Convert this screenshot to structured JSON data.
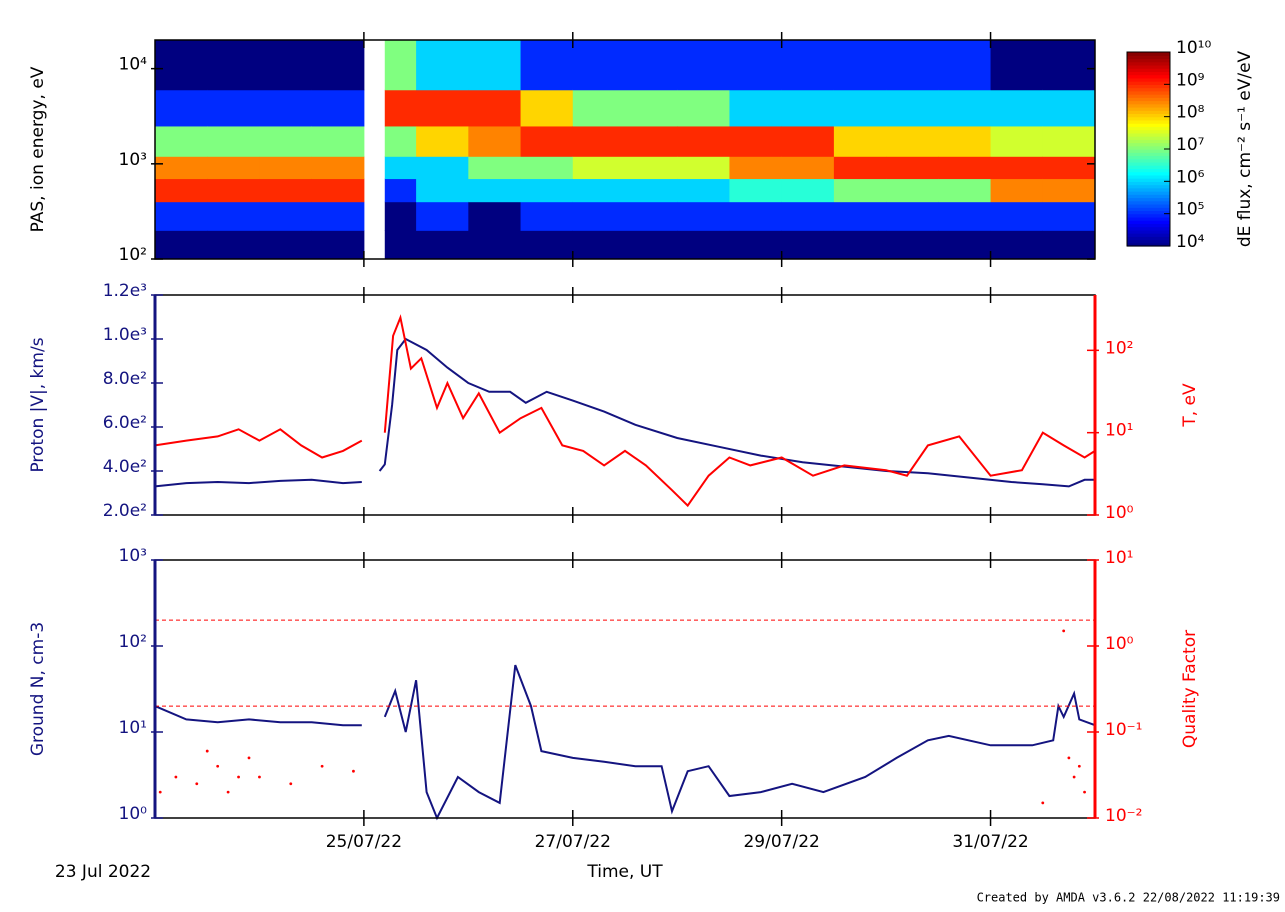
{
  "chart_data": [
    {
      "type": "heatmap",
      "ylabel": "PAS, ion energy, eV",
      "ylog": true,
      "xlim": [
        0,
        9
      ],
      "ylim": [
        100,
        20000
      ],
      "yticks": [
        {
          "value": 100,
          "label": "10²"
        },
        {
          "value": 1000,
          "label": "10³"
        },
        {
          "value": 10000,
          "label": "10⁴"
        }
      ],
      "x_edges": [
        0,
        0.5,
        1,
        1.5,
        2,
        2.2,
        2.5,
        3,
        3.5,
        4,
        4.5,
        5,
        5.5,
        6,
        6.5,
        7,
        7.5,
        8,
        8.5,
        9
      ],
      "y_edges": [
        100,
        200,
        400,
        700,
        1200,
        2500,
        6000,
        20000
      ],
      "z": [
        [
          10000.0,
          100000.0,
          1000000000.0,
          300000000.0,
          10000000.0,
          100000.0,
          10000.0
        ],
        [
          10000.0,
          100000.0,
          1000000000.0,
          300000000.0,
          10000000.0,
          100000.0,
          10000.0
        ],
        [
          10000.0,
          100000.0,
          1000000000.0,
          300000000.0,
          10000000.0,
          100000.0,
          10000.0
        ],
        [
          10000.0,
          100000.0,
          1000000000.0,
          300000000.0,
          10000000.0,
          100000.0,
          10000.0
        ],
        [
          null,
          null,
          null,
          null,
          null,
          null,
          null
        ],
        [
          10000.0,
          10000.0,
          100000.0,
          1000000.0,
          10000000.0,
          1000000000.0,
          10000000.0
        ],
        [
          10000.0,
          100000.0,
          1000000.0,
          1000000.0,
          100000000.0,
          1000000000.0,
          1000000.0
        ],
        [
          10000.0,
          10000.0,
          1000000.0,
          10000000.0,
          300000000.0,
          1000000000.0,
          1000000.0
        ],
        [
          10000.0,
          100000.0,
          1000000.0,
          10000000.0,
          1000000000.0,
          100000000.0,
          100000.0
        ],
        [
          10000.0,
          100000.0,
          1000000.0,
          30000000.0,
          1000000000.0,
          10000000.0,
          100000.0
        ],
        [
          10000.0,
          100000.0,
          1000000.0,
          30000000.0,
          1000000000.0,
          10000000.0,
          100000.0
        ],
        [
          10000.0,
          100000.0,
          1000000.0,
          30000000.0,
          1000000000.0,
          10000000.0,
          100000.0
        ],
        [
          10000.0,
          100000.0,
          3000000.0,
          300000000.0,
          1000000000.0,
          1000000.0,
          100000.0
        ],
        [
          10000.0,
          100000.0,
          3000000.0,
          300000000.0,
          1000000000.0,
          1000000.0,
          100000.0
        ],
        [
          10000.0,
          100000.0,
          10000000.0,
          1000000000.0,
          100000000.0,
          1000000.0,
          100000.0
        ],
        [
          10000.0,
          100000.0,
          10000000.0,
          1000000000.0,
          100000000.0,
          1000000.0,
          100000.0
        ],
        [
          10000.0,
          100000.0,
          10000000.0,
          1000000000.0,
          100000000.0,
          1000000.0,
          100000.0
        ],
        [
          10000.0,
          100000.0,
          300000000.0,
          1000000000.0,
          30000000.0,
          1000000.0,
          10000.0
        ],
        [
          10000.0,
          100000.0,
          300000000.0,
          1000000000.0,
          30000000.0,
          1000000.0,
          10000.0
        ]
      ],
      "colorbar": {
        "label": "dE flux, cm⁻² s⁻¹ eV/eV",
        "lim": [
          10000.0,
          10000000000.0
        ],
        "ticks": [
          {
            "value": 10000.0,
            "label": "10⁴"
          },
          {
            "value": 100000.0,
            "label": "10⁵"
          },
          {
            "value": 1000000.0,
            "label": "10⁶"
          },
          {
            "value": 10000000.0,
            "label": "10⁷"
          },
          {
            "value": 100000000.0,
            "label": "10⁸"
          },
          {
            "value": 1000000000.0,
            "label": "10⁹"
          },
          {
            "value": 10000000000.0,
            "label": "10¹⁰"
          }
        ]
      }
    },
    {
      "type": "line",
      "ylabel": "Proton |V|, km/s",
      "y2label": "T, eV",
      "xlim": [
        0,
        9
      ],
      "ylim": [
        200,
        1200
      ],
      "y2lim": [
        1,
        470
      ],
      "y2log": true,
      "yticks": [
        {
          "value": 200,
          "label": "2.0e²"
        },
        {
          "value": 400,
          "label": "4.0e²"
        },
        {
          "value": 600,
          "label": "6.0e²"
        },
        {
          "value": 800,
          "label": "8.0e²"
        },
        {
          "value": 1000,
          "label": "1.0e³"
        },
        {
          "value": 1200,
          "label": "1.2e³"
        }
      ],
      "y2ticks": [
        {
          "value": 1,
          "label": "10⁰"
        },
        {
          "value": 10,
          "label": "10¹"
        },
        {
          "value": 100,
          "label": "10²"
        }
      ],
      "ycolor": "#141480",
      "y2color": "#ff0000",
      "series": [
        {
          "color": "#141480",
          "x": [
            0,
            0.3,
            0.6,
            0.9,
            1.2,
            1.5,
            1.8,
            1.98,
            2.05,
            2.15,
            2.2,
            2.27,
            2.32,
            2.4,
            2.6,
            2.8,
            3.0,
            3.2,
            3.4,
            3.55,
            3.75,
            4.0,
            4.3,
            4.6,
            5.0,
            5.4,
            5.8,
            6.2,
            6.6,
            7.0,
            7.4,
            7.8,
            8.2,
            8.5,
            8.75,
            8.9,
            9.0
          ],
          "values": [
            330,
            345,
            350,
            345,
            355,
            360,
            345,
            350,
            null,
            400,
            430,
            700,
            950,
            1000,
            950,
            870,
            800,
            760,
            760,
            710,
            760,
            720,
            670,
            610,
            550,
            510,
            470,
            440,
            420,
            400,
            390,
            370,
            350,
            340,
            330,
            360,
            360
          ]
        },
        {
          "color": "#ff0000",
          "axis": "y2",
          "x": [
            0,
            0.3,
            0.6,
            0.8,
            1.0,
            1.2,
            1.4,
            1.6,
            1.8,
            1.98,
            2.05,
            2.2,
            2.28,
            2.35,
            2.45,
            2.55,
            2.7,
            2.8,
            2.95,
            3.1,
            3.3,
            3.5,
            3.7,
            3.9,
            4.1,
            4.3,
            4.5,
            4.7,
            4.95,
            5.1,
            5.3,
            5.5,
            5.7,
            6.0,
            6.3,
            6.6,
            7.0,
            7.2,
            7.4,
            7.7,
            8.0,
            8.3,
            8.5,
            8.7,
            8.9,
            9.0
          ],
          "values": [
            7,
            8,
            9,
            11,
            8,
            11,
            7,
            5,
            6,
            8,
            null,
            10,
            150,
            250,
            60,
            80,
            20,
            40,
            15,
            30,
            10,
            15,
            20,
            7,
            6,
            4,
            6,
            4,
            2,
            1.3,
            3,
            5,
            4,
            5,
            3,
            4,
            3.5,
            3,
            7,
            9,
            3,
            3.5,
            10,
            7,
            5,
            6
          ]
        }
      ]
    },
    {
      "type": "line",
      "ylabel": "Ground N, cm-3",
      "y2label": "Quality Factor",
      "ylog": true,
      "y2log": true,
      "xlim": [
        0,
        9
      ],
      "ylim": [
        1,
        1000
      ],
      "y2lim": [
        0.01,
        10
      ],
      "yticks": [
        {
          "value": 1,
          "label": "10⁰"
        },
        {
          "value": 10,
          "label": "10¹"
        },
        {
          "value": 100,
          "label": "10²"
        },
        {
          "value": 1000,
          "label": "10³"
        }
      ],
      "y2ticks": [
        {
          "value": 0.01,
          "label": "10⁻²"
        },
        {
          "value": 0.1,
          "label": "10⁻¹"
        },
        {
          "value": 1,
          "label": "10⁰"
        },
        {
          "value": 10,
          "label": "10¹"
        }
      ],
      "ycolor": "#141480",
      "y2color": "#ff0000",
      "y2_ref_lines": [
        2,
        0.2
      ],
      "xticks": [
        {
          "value": 2,
          "label": "25/07/22"
        },
        {
          "value": 4,
          "label": "27/07/22"
        },
        {
          "value": 6,
          "label": "29/07/22"
        },
        {
          "value": 8,
          "label": "31/07/22"
        }
      ],
      "xlabel": "Time, UT",
      "start_label": "23 Jul 2022",
      "series": [
        {
          "color": "#141480",
          "x": [
            0,
            0.3,
            0.6,
            0.9,
            1.2,
            1.5,
            1.8,
            1.98,
            2.05,
            2.2,
            2.3,
            2.4,
            2.5,
            2.6,
            2.7,
            2.9,
            3.1,
            3.3,
            3.45,
            3.6,
            3.7,
            4.0,
            4.3,
            4.6,
            4.85,
            4.95,
            5.1,
            5.3,
            5.5,
            5.8,
            6.1,
            6.4,
            6.8,
            7.1,
            7.4,
            7.6,
            8.0,
            8.4,
            8.6,
            8.65,
            8.7,
            8.8,
            8.85,
            9.0
          ],
          "values": [
            20,
            14,
            13,
            14,
            13,
            13,
            12,
            12,
            null,
            15,
            30,
            10,
            40,
            2,
            1,
            3,
            2,
            1.5,
            60,
            20,
            6,
            5,
            4.5,
            4,
            4,
            1.2,
            3.5,
            4,
            1.8,
            2,
            2.5,
            2,
            3,
            5,
            8,
            9,
            7,
            7,
            8,
            20,
            15,
            28,
            14,
            12
          ]
        },
        {
          "color": "#ff0000",
          "axis": "y2",
          "type": "scatter",
          "x": [
            0.05,
            0.2,
            0.4,
            0.5,
            0.6,
            0.7,
            0.8,
            0.9,
            1.0,
            1.3,
            1.6,
            1.9,
            8.5,
            8.7,
            8.75,
            8.8,
            8.85,
            8.9
          ],
          "values": [
            0.02,
            0.03,
            0.025,
            0.06,
            0.04,
            0.02,
            0.03,
            0.05,
            0.03,
            0.025,
            0.04,
            0.035,
            0.015,
            1.5,
            0.05,
            0.03,
            0.04,
            0.02
          ]
        }
      ]
    }
  ],
  "footer": "Created by AMDA v3.6.2 22/08/2022 11:19:39"
}
